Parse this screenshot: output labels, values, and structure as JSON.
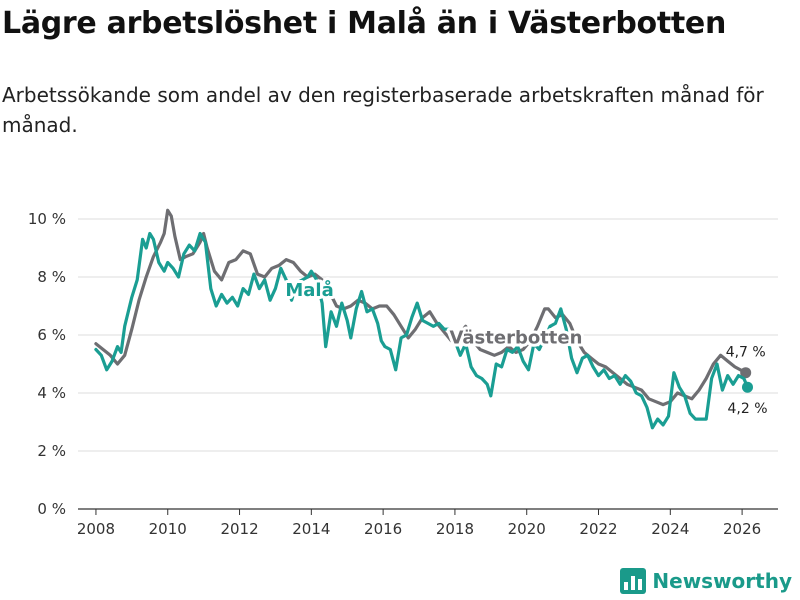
{
  "header": {
    "title": "Lägre arbetslöshet i Malå än i Västerbotten",
    "subtitle": "Arbetssökande som andel av den registerbaserade arbetskraften månad för månad."
  },
  "brand": {
    "name": "Newsworthy",
    "color": "#1a9a8a"
  },
  "chart_data": {
    "type": "line",
    "title": "Lägre arbetslöshet i Malå än i Västerbotten",
    "xlabel": "",
    "ylabel": "",
    "xlim": [
      2007.5,
      2027.0
    ],
    "ylim": [
      0,
      10
    ],
    "xticks": [
      2008,
      2010,
      2012,
      2014,
      2016,
      2018,
      2020,
      2022,
      2024,
      2026
    ],
    "xtick_labels": [
      "2008",
      "2010",
      "2012",
      "2014",
      "2016",
      "2018",
      "2020",
      "2022",
      "2024",
      "2026"
    ],
    "yticks": [
      0,
      2,
      4,
      6,
      8,
      10
    ],
    "ytick_labels": [
      "0 %",
      "2 %",
      "4 %",
      "6 %",
      "8 %",
      "10 %"
    ],
    "grid": true,
    "series": [
      {
        "name": "Västerbotten",
        "color": "#6e6e72",
        "end_label": "4,7 %",
        "points": [
          [
            2008.0,
            5.7
          ],
          [
            2008.2,
            5.5
          ],
          [
            2008.4,
            5.3
          ],
          [
            2008.6,
            5.0
          ],
          [
            2008.8,
            5.3
          ],
          [
            2009.0,
            6.2
          ],
          [
            2009.2,
            7.2
          ],
          [
            2009.4,
            8.0
          ],
          [
            2009.6,
            8.7
          ],
          [
            2009.8,
            9.2
          ],
          [
            2009.9,
            9.5
          ],
          [
            2010.0,
            10.3
          ],
          [
            2010.1,
            10.1
          ],
          [
            2010.2,
            9.4
          ],
          [
            2010.35,
            8.6
          ],
          [
            2010.5,
            8.7
          ],
          [
            2010.7,
            8.8
          ],
          [
            2010.9,
            9.2
          ],
          [
            2011.0,
            9.5
          ],
          [
            2011.1,
            9.0
          ],
          [
            2011.3,
            8.2
          ],
          [
            2011.5,
            7.9
          ],
          [
            2011.7,
            8.5
          ],
          [
            2011.9,
            8.6
          ],
          [
            2012.1,
            8.9
          ],
          [
            2012.3,
            8.8
          ],
          [
            2012.5,
            8.1
          ],
          [
            2012.7,
            8.0
          ],
          [
            2012.9,
            8.3
          ],
          [
            2013.1,
            8.4
          ],
          [
            2013.3,
            8.6
          ],
          [
            2013.5,
            8.5
          ],
          [
            2013.7,
            8.2
          ],
          [
            2013.9,
            8.0
          ],
          [
            2014.1,
            8.1
          ],
          [
            2014.3,
            7.9
          ],
          [
            2014.5,
            7.5
          ],
          [
            2014.7,
            7.0
          ],
          [
            2014.9,
            6.9
          ],
          [
            2015.1,
            7.0
          ],
          [
            2015.3,
            7.2
          ],
          [
            2015.5,
            7.1
          ],
          [
            2015.7,
            6.9
          ],
          [
            2015.9,
            7.0
          ],
          [
            2016.1,
            7.0
          ],
          [
            2016.3,
            6.7
          ],
          [
            2016.5,
            6.3
          ],
          [
            2016.7,
            5.9
          ],
          [
            2016.9,
            6.2
          ],
          [
            2017.1,
            6.6
          ],
          [
            2017.3,
            6.8
          ],
          [
            2017.5,
            6.4
          ],
          [
            2017.7,
            6.1
          ],
          [
            2017.9,
            5.8
          ],
          [
            2018.1,
            6.0
          ],
          [
            2018.3,
            6.3
          ],
          [
            2018.5,
            5.8
          ],
          [
            2018.7,
            5.5
          ],
          [
            2018.9,
            5.4
          ],
          [
            2019.1,
            5.3
          ],
          [
            2019.3,
            5.4
          ],
          [
            2019.5,
            5.6
          ],
          [
            2019.7,
            5.4
          ],
          [
            2019.9,
            5.5
          ],
          [
            2020.1,
            5.8
          ],
          [
            2020.3,
            6.3
          ],
          [
            2020.5,
            6.9
          ],
          [
            2020.6,
            6.9
          ],
          [
            2020.8,
            6.6
          ],
          [
            2021.0,
            6.7
          ],
          [
            2021.2,
            6.4
          ],
          [
            2021.4,
            5.8
          ],
          [
            2021.6,
            5.4
          ],
          [
            2021.8,
            5.2
          ],
          [
            2022.0,
            5.0
          ],
          [
            2022.2,
            4.9
          ],
          [
            2022.4,
            4.7
          ],
          [
            2022.6,
            4.5
          ],
          [
            2022.8,
            4.3
          ],
          [
            2023.0,
            4.2
          ],
          [
            2023.2,
            4.1
          ],
          [
            2023.4,
            3.8
          ],
          [
            2023.6,
            3.7
          ],
          [
            2023.8,
            3.6
          ],
          [
            2024.0,
            3.7
          ],
          [
            2024.2,
            4.0
          ],
          [
            2024.4,
            3.9
          ],
          [
            2024.6,
            3.8
          ],
          [
            2024.8,
            4.1
          ],
          [
            2025.0,
            4.5
          ],
          [
            2025.2,
            5.0
          ],
          [
            2025.4,
            5.3
          ],
          [
            2025.6,
            5.1
          ],
          [
            2025.8,
            4.9
          ],
          [
            2026.1,
            4.7
          ]
        ]
      },
      {
        "name": "Malå",
        "color": "#1a9e93",
        "end_label": "4,2 %",
        "points": [
          [
            2008.0,
            5.5
          ],
          [
            2008.15,
            5.3
          ],
          [
            2008.3,
            4.8
          ],
          [
            2008.45,
            5.1
          ],
          [
            2008.6,
            5.6
          ],
          [
            2008.7,
            5.4
          ],
          [
            2008.8,
            6.3
          ],
          [
            2009.0,
            7.3
          ],
          [
            2009.15,
            7.9
          ],
          [
            2009.3,
            9.3
          ],
          [
            2009.4,
            9.0
          ],
          [
            2009.5,
            9.5
          ],
          [
            2009.6,
            9.3
          ],
          [
            2009.75,
            8.5
          ],
          [
            2009.9,
            8.2
          ],
          [
            2010.0,
            8.5
          ],
          [
            2010.15,
            8.3
          ],
          [
            2010.3,
            8.0
          ],
          [
            2010.45,
            8.8
          ],
          [
            2010.6,
            9.1
          ],
          [
            2010.75,
            8.9
          ],
          [
            2010.9,
            9.5
          ],
          [
            2011.05,
            9.2
          ],
          [
            2011.2,
            7.6
          ],
          [
            2011.35,
            7.0
          ],
          [
            2011.5,
            7.4
          ],
          [
            2011.65,
            7.1
          ],
          [
            2011.8,
            7.3
          ],
          [
            2011.95,
            7.0
          ],
          [
            2012.1,
            7.6
          ],
          [
            2012.25,
            7.4
          ],
          [
            2012.4,
            8.1
          ],
          [
            2012.55,
            7.6
          ],
          [
            2012.7,
            7.9
          ],
          [
            2012.85,
            7.2
          ],
          [
            2013.0,
            7.6
          ],
          [
            2013.15,
            8.3
          ],
          [
            2013.3,
            7.9
          ],
          [
            2013.45,
            7.2
          ],
          [
            2013.6,
            7.8
          ],
          [
            2013.75,
            7.9
          ],
          [
            2013.9,
            8.0
          ],
          [
            2014.0,
            8.2
          ],
          [
            2014.15,
            7.9
          ],
          [
            2014.3,
            7.1
          ],
          [
            2014.4,
            5.6
          ],
          [
            2014.55,
            6.8
          ],
          [
            2014.7,
            6.3
          ],
          [
            2014.85,
            7.1
          ],
          [
            2015.0,
            6.5
          ],
          [
            2015.1,
            5.9
          ],
          [
            2015.25,
            6.9
          ],
          [
            2015.4,
            7.5
          ],
          [
            2015.55,
            6.8
          ],
          [
            2015.7,
            6.9
          ],
          [
            2015.85,
            6.4
          ],
          [
            2015.95,
            5.8
          ],
          [
            2016.05,
            5.6
          ],
          [
            2016.2,
            5.5
          ],
          [
            2016.35,
            4.8
          ],
          [
            2016.5,
            5.9
          ],
          [
            2016.65,
            6.0
          ],
          [
            2016.8,
            6.6
          ],
          [
            2016.95,
            7.1
          ],
          [
            2017.1,
            6.5
          ],
          [
            2017.25,
            6.4
          ],
          [
            2017.4,
            6.3
          ],
          [
            2017.55,
            6.4
          ],
          [
            2017.7,
            6.2
          ],
          [
            2017.85,
            6.2
          ],
          [
            2018.0,
            5.8
          ],
          [
            2018.15,
            5.3
          ],
          [
            2018.3,
            5.7
          ],
          [
            2018.45,
            4.9
          ],
          [
            2018.6,
            4.6
          ],
          [
            2018.75,
            4.5
          ],
          [
            2018.9,
            4.3
          ],
          [
            2019.0,
            3.9
          ],
          [
            2019.15,
            5.0
          ],
          [
            2019.3,
            4.9
          ],
          [
            2019.45,
            5.5
          ],
          [
            2019.6,
            5.4
          ],
          [
            2019.75,
            5.6
          ],
          [
            2019.9,
            5.1
          ],
          [
            2020.05,
            4.8
          ],
          [
            2020.2,
            5.7
          ],
          [
            2020.35,
            5.5
          ],
          [
            2020.5,
            5.9
          ],
          [
            2020.65,
            6.3
          ],
          [
            2020.8,
            6.4
          ],
          [
            2020.95,
            6.9
          ],
          [
            2021.1,
            6.2
          ],
          [
            2021.25,
            5.2
          ],
          [
            2021.4,
            4.7
          ],
          [
            2021.55,
            5.2
          ],
          [
            2021.7,
            5.3
          ],
          [
            2021.85,
            4.9
          ],
          [
            2022.0,
            4.6
          ],
          [
            2022.15,
            4.8
          ],
          [
            2022.3,
            4.5
          ],
          [
            2022.45,
            4.6
          ],
          [
            2022.6,
            4.3
          ],
          [
            2022.75,
            4.6
          ],
          [
            2022.9,
            4.4
          ],
          [
            2023.05,
            4.0
          ],
          [
            2023.2,
            3.9
          ],
          [
            2023.35,
            3.5
          ],
          [
            2023.5,
            2.8
          ],
          [
            2023.65,
            3.1
          ],
          [
            2023.8,
            2.9
          ],
          [
            2023.95,
            3.2
          ],
          [
            2024.1,
            4.7
          ],
          [
            2024.25,
            4.2
          ],
          [
            2024.4,
            3.9
          ],
          [
            2024.55,
            3.3
          ],
          [
            2024.7,
            3.1
          ],
          [
            2024.85,
            3.1
          ],
          [
            2025.0,
            3.1
          ],
          [
            2025.15,
            4.5
          ],
          [
            2025.3,
            5.0
          ],
          [
            2025.45,
            4.1
          ],
          [
            2025.6,
            4.6
          ],
          [
            2025.75,
            4.3
          ],
          [
            2025.9,
            4.6
          ],
          [
            2026.05,
            4.5
          ],
          [
            2026.15,
            4.2
          ]
        ]
      }
    ]
  }
}
